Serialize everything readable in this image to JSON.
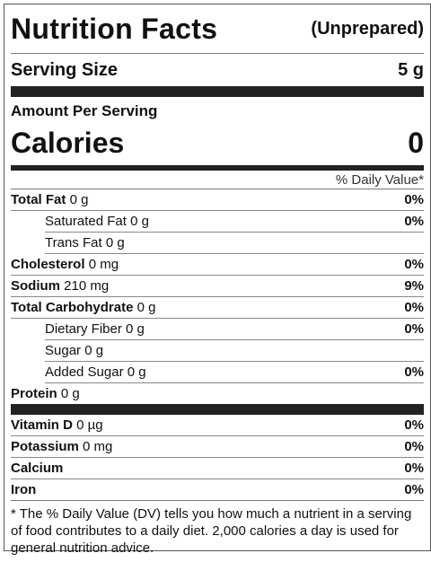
{
  "header": {
    "title": "Nutrition Facts",
    "subtitle": "(Unprepared)"
  },
  "serving": {
    "label": "Serving Size",
    "value": "5 g"
  },
  "amount_per_serving": "Amount Per Serving",
  "calories": {
    "label": "Calories",
    "value": "0"
  },
  "daily_value_header": "% Daily Value*",
  "nutrients": [
    {
      "name": "Total Fat",
      "amount": "0 g",
      "dv": "0%",
      "sub": [
        {
          "name": "Saturated Fat",
          "amount": "0 g",
          "dv": "0%"
        },
        {
          "name": "Trans Fat",
          "amount": "0 g"
        }
      ]
    },
    {
      "name": "Cholesterol",
      "amount": "0 mg",
      "dv": "0%"
    },
    {
      "name": "Sodium",
      "amount": "210 mg",
      "dv": "9%"
    },
    {
      "name": "Total Carbohydrate",
      "amount": "0 g",
      "dv": "0%",
      "sub": [
        {
          "name": "Dietary Fiber",
          "amount": "0 g",
          "dv": "0%"
        },
        {
          "name": "Sugar",
          "amount": "0 g"
        },
        {
          "name": "Added Sugar",
          "amount": "0 g",
          "dv": "0%"
        }
      ]
    },
    {
      "name": "Protein",
      "amount": "0 g"
    }
  ],
  "vitamins": [
    {
      "name": "Vitamin D",
      "amount": "0 µg",
      "dv": "0%"
    },
    {
      "name": "Potassium",
      "amount": "0 mg",
      "dv": "0%"
    },
    {
      "name": "Calcium",
      "dv": "0%"
    },
    {
      "name": "Iron",
      "dv": "0%"
    }
  ],
  "footnote": "* The % Daily Value (DV) tells you how much a nutrient in a serving of food contributes to a daily diet. 2,000 calories a day is used for general nutrition advice."
}
